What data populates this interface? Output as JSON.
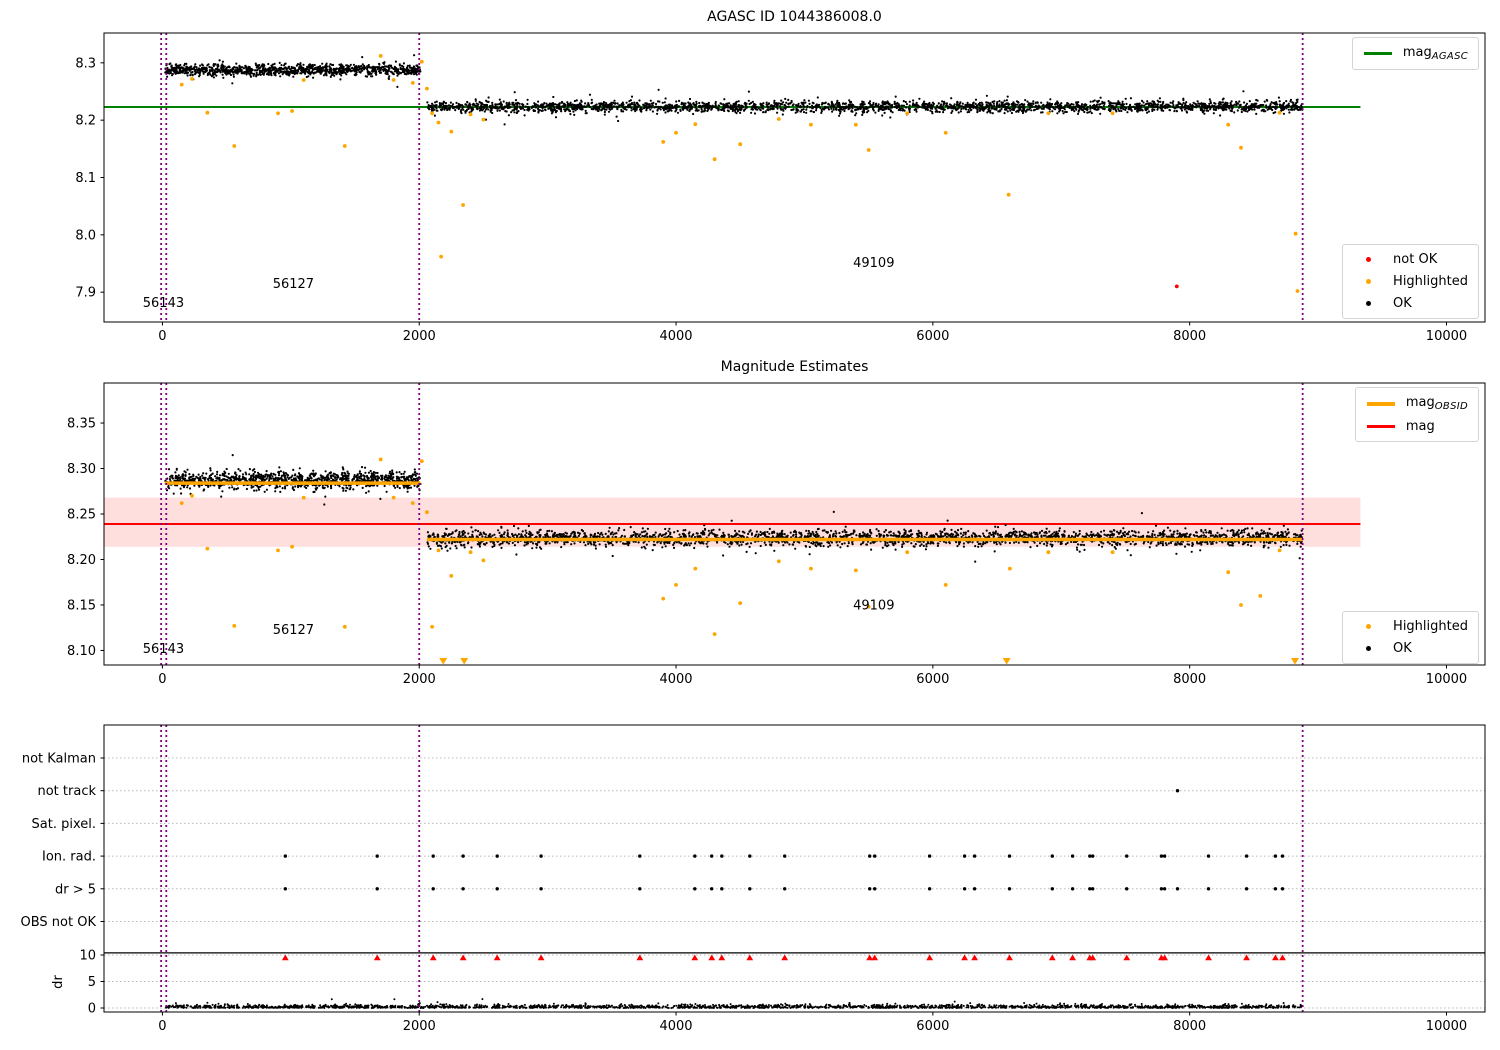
{
  "figure": {
    "title_top": "AGASC ID 1044386008.0",
    "title_mid": "Magnitude Estimates"
  },
  "colors": {
    "ok": "#000000",
    "highlighted": "#ffa500",
    "not_ok": "#ff0000",
    "mag_agasc": "#008000",
    "mag_obsid": "#ffa500",
    "mag": "#ff0000",
    "mag_band": "rgba(255,0,0,0.13)",
    "vline": "#800080",
    "grid": "#b8b8b8",
    "axis": "#000000"
  },
  "chart_data": [
    {
      "type": "scatter",
      "title": "AGASC ID 1044386008.0",
      "xlim": [
        -455,
        10300
      ],
      "xticks": [
        0,
        2000,
        4000,
        6000,
        8000,
        10000
      ],
      "xtick_labels": [
        "0",
        "2000",
        "4000",
        "6000",
        "8000",
        "10000"
      ],
      "ylim": [
        7.848,
        8.352
      ],
      "yticks": [
        7.9,
        8.0,
        8.1,
        8.2,
        8.3
      ],
      "ytick_labels": [
        "7.9",
        "8.0",
        "8.1",
        "8.2",
        "8.3"
      ],
      "hlines": [
        {
          "y": 8.223,
          "x0": -455,
          "x1": 9330,
          "color": "mag_agasc",
          "w": 2
        }
      ],
      "vlines": [
        -10,
        30,
        2000,
        8880
      ],
      "segments": [
        {
          "x0": 20,
          "x1": 2010,
          "mean": 8.2875,
          "std": 0.005,
          "n": 1100
        },
        {
          "x0": 2060,
          "x1": 8880,
          "mean": 8.2235,
          "std": 0.0048,
          "n": 2600
        }
      ],
      "highlighted": [
        [
          150,
          8.262
        ],
        [
          230,
          8.272
        ],
        [
          350,
          8.213
        ],
        [
          560,
          8.155
        ],
        [
          900,
          8.212
        ],
        [
          1010,
          8.216
        ],
        [
          1100,
          8.27
        ],
        [
          1420,
          8.155
        ],
        [
          1700,
          8.312
        ],
        [
          1800,
          8.27
        ],
        [
          1950,
          8.265
        ],
        [
          2020,
          8.302
        ],
        [
          2060,
          8.255
        ],
        [
          2100,
          8.212
        ],
        [
          2150,
          8.196
        ],
        [
          2170,
          7.962
        ],
        [
          2250,
          8.18
        ],
        [
          2342,
          8.052
        ],
        [
          2400,
          8.21
        ],
        [
          2500,
          8.201
        ],
        [
          3900,
          8.162
        ],
        [
          4000,
          8.178
        ],
        [
          4150,
          8.193
        ],
        [
          4300,
          8.132
        ],
        [
          4500,
          8.158
        ],
        [
          4800,
          8.202
        ],
        [
          5050,
          8.192
        ],
        [
          5400,
          8.192
        ],
        [
          5500,
          8.148
        ],
        [
          5800,
          8.212
        ],
        [
          6100,
          8.178
        ],
        [
          6590,
          8.07
        ],
        [
          6900,
          8.212
        ],
        [
          7400,
          8.212
        ],
        [
          8300,
          8.192
        ],
        [
          8400,
          8.152
        ],
        [
          8700,
          8.213
        ],
        [
          8825,
          8.002
        ],
        [
          8840,
          7.902
        ]
      ],
      "not_ok": [
        [
          7900,
          7.91
        ]
      ],
      "annotations": [
        {
          "text": "56143",
          "x": 8,
          "y": 7.874
        },
        {
          "text": "56127",
          "x": 1020,
          "y": 7.907
        },
        {
          "text": "49109",
          "x": 5540,
          "y": 7.944
        }
      ],
      "legend_mag_agasc": {
        "label": "mag",
        "sub": "AGASC"
      },
      "legend_points": [
        "not OK",
        "Highlighted",
        "OK"
      ]
    },
    {
      "type": "scatter",
      "title": "Magnitude Estimates",
      "xlim": [
        -455,
        10300
      ],
      "xticks": [
        0,
        2000,
        4000,
        6000,
        8000,
        10000
      ],
      "xtick_labels": [
        "0",
        "2000",
        "4000",
        "6000",
        "8000",
        "10000"
      ],
      "ylim": [
        8.084,
        8.394
      ],
      "yticks": [
        8.1,
        8.15,
        8.2,
        8.25,
        8.3,
        8.35
      ],
      "ytick_labels": [
        "8.10",
        "8.15",
        "8.20",
        "8.25",
        "8.30",
        "8.35"
      ],
      "band": {
        "y0": 8.214,
        "y1": 8.268,
        "x0": -455,
        "x1": 9330,
        "color": "mag_band"
      },
      "hlines": [
        {
          "y": 8.239,
          "x0": -455,
          "x1": 9330,
          "color": "mag",
          "w": 2
        }
      ],
      "obsid_lines": [
        {
          "x0": 20,
          "x1": 2010,
          "y": 8.284
        },
        {
          "x0": 2060,
          "x1": 8880,
          "y": 8.222
        }
      ],
      "vlines": [
        -10,
        30,
        2000,
        8880
      ],
      "segments": [
        {
          "x0": 20,
          "x1": 2010,
          "mean": 8.287,
          "std": 0.005,
          "n": 1100
        },
        {
          "x0": 2060,
          "x1": 8880,
          "mean": 8.2235,
          "std": 0.0044,
          "n": 2600
        }
      ],
      "highlighted": [
        [
          150,
          8.262
        ],
        [
          230,
          8.27
        ],
        [
          350,
          8.212
        ],
        [
          560,
          8.127
        ],
        [
          900,
          8.21
        ],
        [
          1010,
          8.214
        ],
        [
          1100,
          8.268
        ],
        [
          1420,
          8.126
        ],
        [
          1700,
          8.31
        ],
        [
          1800,
          8.268
        ],
        [
          1950,
          8.262
        ],
        [
          2020,
          8.308
        ],
        [
          2060,
          8.252
        ],
        [
          2100,
          8.126
        ],
        [
          2150,
          8.21
        ],
        [
          2250,
          8.182
        ],
        [
          2400,
          8.208
        ],
        [
          2500,
          8.199
        ],
        [
          3900,
          8.157
        ],
        [
          4000,
          8.172
        ],
        [
          4150,
          8.19
        ],
        [
          4300,
          8.118
        ],
        [
          4500,
          8.152
        ],
        [
          4800,
          8.198
        ],
        [
          5050,
          8.19
        ],
        [
          5400,
          8.188
        ],
        [
          5500,
          8.148
        ],
        [
          5800,
          8.208
        ],
        [
          6100,
          8.172
        ],
        [
          6600,
          8.19
        ],
        [
          6900,
          8.208
        ],
        [
          7400,
          8.208
        ],
        [
          8300,
          8.186
        ],
        [
          8400,
          8.15
        ],
        [
          8550,
          8.16
        ],
        [
          8700,
          8.21
        ]
      ],
      "clipped_low_x": [
        2187,
        2350,
        6575,
        8820
      ],
      "annotations": [
        {
          "text": "56143",
          "x": 8,
          "y": 8.097
        },
        {
          "text": "56127",
          "x": 1020,
          "y": 8.118
        },
        {
          "text": "49109",
          "x": 5540,
          "y": 8.145
        }
      ],
      "legend_mag_obsid": {
        "label": "mag",
        "sub": "OBSID"
      },
      "legend_mag": {
        "label": "mag"
      },
      "legend_points": [
        "Highlighted",
        "OK"
      ]
    },
    {
      "type": "flags",
      "flag_labels": [
        "not Kalman",
        "not track",
        "Sat. pixel.",
        "Ion. rad.",
        "dr > 5",
        "OBS not OK"
      ],
      "dr_label": "dr",
      "dr_ticks": [
        10,
        5,
        0
      ],
      "dr_tick_labels": [
        "10",
        "5",
        "0"
      ],
      "dr_limit_line": 10.4,
      "xlim": [
        -455,
        10300
      ],
      "xticks": [
        0,
        2000,
        4000,
        6000,
        8000,
        10000
      ],
      "xtick_labels": [
        "0",
        "2000",
        "4000",
        "6000",
        "8000",
        "10000"
      ],
      "vlines": [
        -10,
        30,
        2000,
        8880
      ],
      "flag_x": [
        957,
        1673,
        2109,
        2342,
        2607,
        2949,
        3718,
        4146,
        4278,
        4356,
        4574,
        4846,
        5508,
        5547,
        5975,
        6247,
        6325,
        6597,
        6930,
        7088,
        7222,
        7245,
        7510,
        7780,
        7805,
        8147,
        8443,
        8668,
        8723
      ],
      "ion_rad_x_ref": "flag_x",
      "dr_gt5_extra_x": [
        7905
      ],
      "not_track_x": [
        7905
      ],
      "red_triangle_dr": 9.5,
      "dr_scatter": {
        "x0": 20,
        "x1": 8880,
        "n": 2200,
        "scale": 0.3,
        "max": 3.2
      }
    }
  ]
}
